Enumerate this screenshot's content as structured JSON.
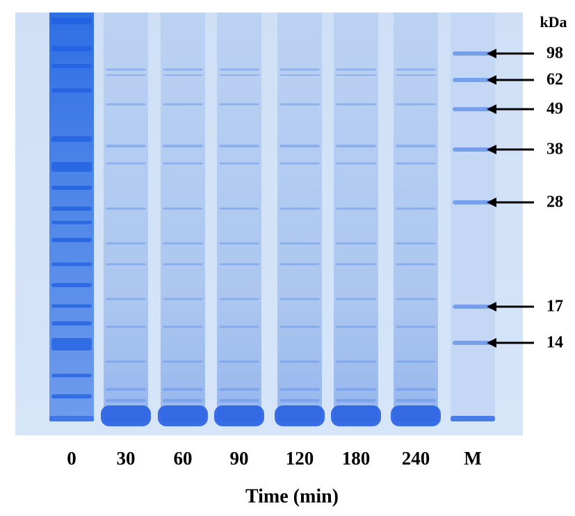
{
  "gel": {
    "unit_label": "kDa",
    "markers": [
      "98",
      "62",
      "49",
      "38",
      "28",
      "17",
      "14"
    ],
    "lanes": [
      "0",
      "30",
      "60",
      "90",
      "120",
      "180",
      "240",
      "M"
    ],
    "axis_title": "Time (min)"
  }
}
